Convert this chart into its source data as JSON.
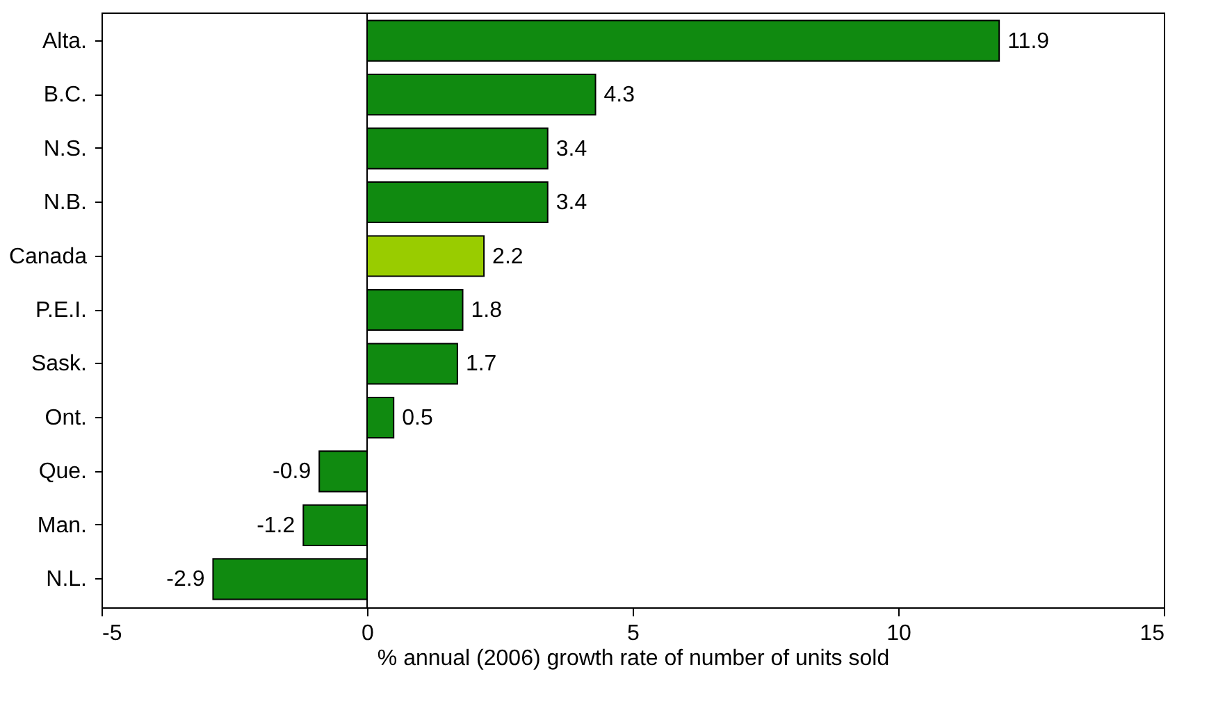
{
  "chart_data": {
    "type": "bar",
    "orientation": "horizontal",
    "xlabel": "% annual (2006) growth rate of number of units sold",
    "categories": [
      "Alta.",
      "B.C.",
      "N.S.",
      "N.B.",
      "Canada",
      "P.E.I.",
      "Sask.",
      "Ont.",
      "Que.",
      "Man.",
      "N.L."
    ],
    "values": [
      11.9,
      4.3,
      3.4,
      3.4,
      2.2,
      1.8,
      1.7,
      0.5,
      -0.9,
      -1.2,
      -2.9
    ],
    "colors": [
      "#108a10",
      "#108a10",
      "#108a10",
      "#108a10",
      "#99cc00",
      "#108a10",
      "#108a10",
      "#108a10",
      "#108a10",
      "#108a10",
      "#108a10"
    ],
    "xlim": [
      -5,
      15
    ],
    "xticks": [
      -5,
      0,
      5,
      10,
      15
    ],
    "data_labels": true,
    "grid": false,
    "ref_lines": [
      {
        "axis": "x",
        "value": 0
      }
    ]
  }
}
